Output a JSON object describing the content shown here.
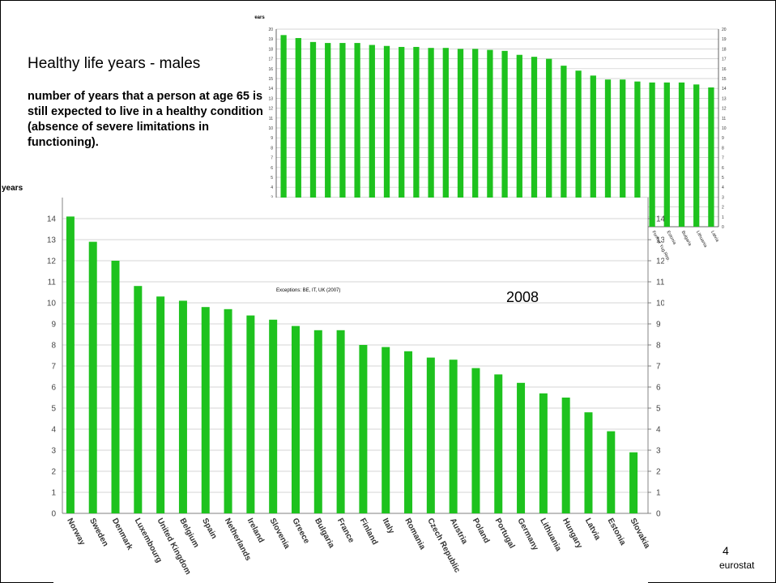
{
  "slide": {
    "title": "Healthy life years - males",
    "description": "number of years that a person at age 65 is still expected to live in a healthy condition (absence of severe limitations in functioning).",
    "year": "2008",
    "page_number": "4",
    "organization": "eurostat"
  },
  "colors": {
    "bar": "#1ec21e",
    "grid": "#c8c8c8",
    "axis": "#000000"
  },
  "chart_data": [
    {
      "type": "bar",
      "ylabel": "years",
      "annotation": "Exceptions: BE, IT, UK (2007)",
      "ylim": [
        0,
        15
      ],
      "yticks": [
        0,
        1,
        2,
        3,
        4,
        5,
        6,
        7,
        8,
        9,
        10,
        11,
        12,
        13,
        14
      ],
      "grid": true,
      "categories": [
        "Norway",
        "Sweden",
        "Denmark",
        "Luxembourg",
        "United Kingdom",
        "Belgium",
        "Spain",
        "Netherlands",
        "Ireland",
        "Slovenia",
        "Greece",
        "Bulgaria",
        "France",
        "Finland",
        "Italy",
        "Romania",
        "Czech Republic",
        "Austria",
        "Poland",
        "Portugal",
        "Germany",
        "Lithuania",
        "Hungary",
        "Latvia",
        "Estonia",
        "Slovakia"
      ],
      "values": [
        14.1,
        12.9,
        12.0,
        10.8,
        10.3,
        10.1,
        9.8,
        9.7,
        9.4,
        9.2,
        8.9,
        8.7,
        8.7,
        8.0,
        7.9,
        7.7,
        7.4,
        7.3,
        6.9,
        6.6,
        6.2,
        5.7,
        5.5,
        4.8,
        3.9,
        2.9
      ]
    },
    {
      "type": "bar",
      "ylabel": "years",
      "ylim": [
        0,
        20
      ],
      "grid": true,
      "categories": [
        "Switzerland",
        "France",
        "Sweden",
        "Italy",
        "Spain",
        "Cyprus",
        "Greece",
        "Austria",
        "Norway",
        "Germany",
        "United Kingdom",
        "Poland",
        "Luxembourg",
        "Netherlands",
        "Belgium",
        "Iceland",
        "Portugal",
        "Denmark",
        "Slovenia",
        "Czech Republic",
        "Malta",
        "Croatia",
        "Romania",
        "Hungary",
        "Slovakia",
        "Former Yug.Rep.",
        "Estonia",
        "Bulgaria",
        "Lithuania",
        "Latvia"
      ],
      "values": [
        19.4,
        19.1,
        18.7,
        18.6,
        18.6,
        18.6,
        18.4,
        18.3,
        18.2,
        18.2,
        18.1,
        18.1,
        18.0,
        18.0,
        17.9,
        17.8,
        17.4,
        17.2,
        17.0,
        16.3,
        15.8,
        15.3,
        14.9,
        14.9,
        14.7,
        14.6,
        14.6,
        14.6,
        14.4,
        14.1
      ]
    }
  ]
}
